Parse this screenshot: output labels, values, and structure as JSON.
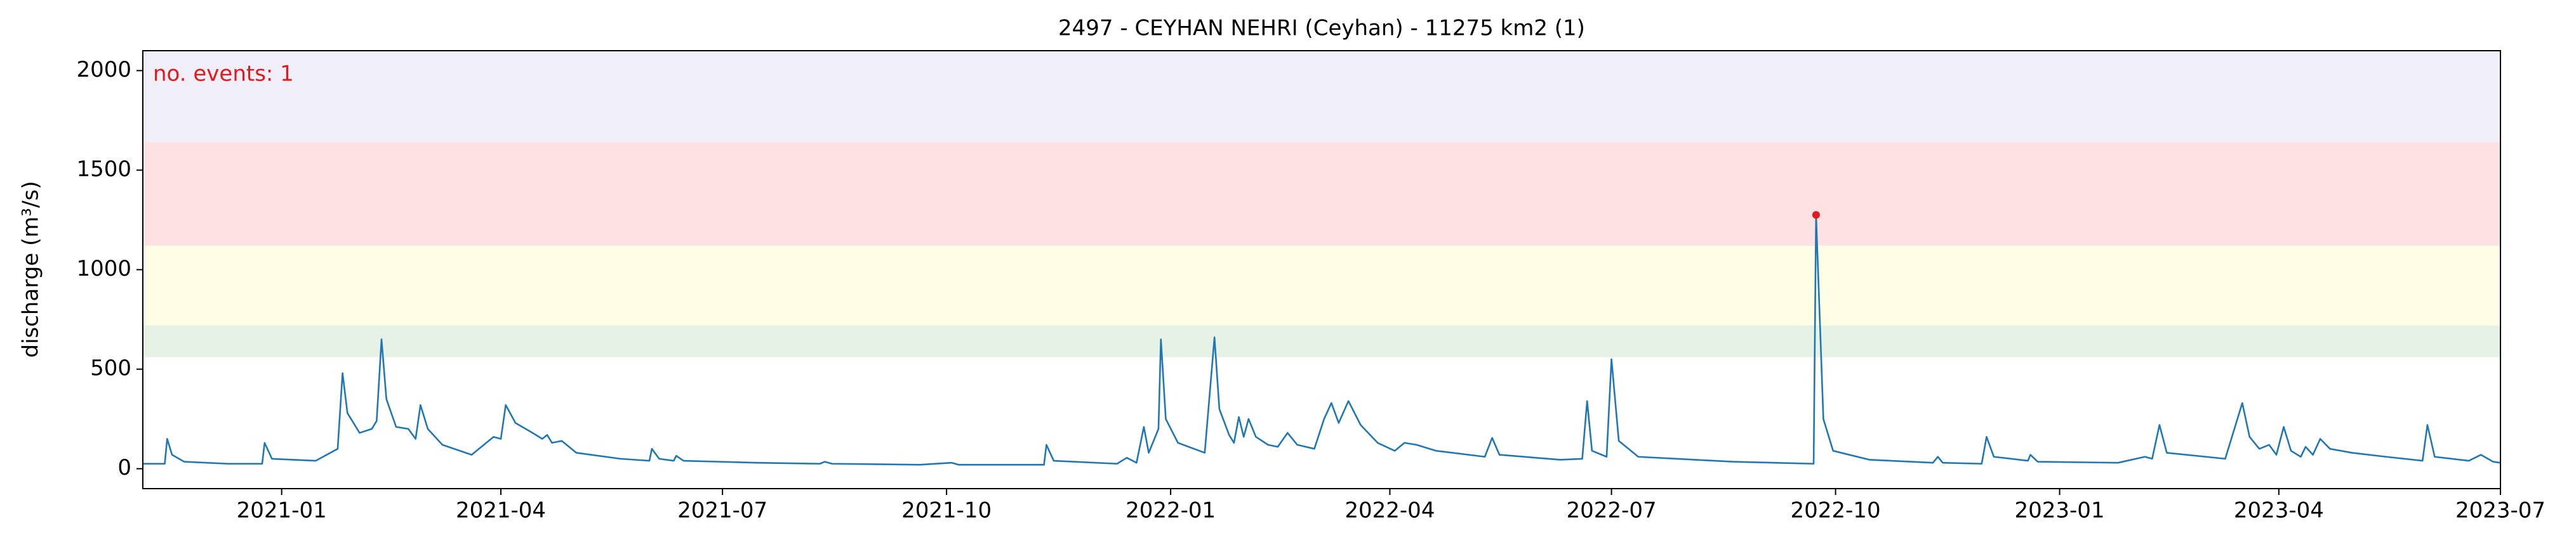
{
  "chart_data": {
    "type": "line",
    "title": "2497 - CEYHAN NEHRI (Ceyhan) - 11275 km2 (1)",
    "y_label": "discharge (m³/s)",
    "annotation": "no. events: 1",
    "annotation_color": "#e31a1c",
    "xlim": [
      "2020-11-05",
      "2023-07-01"
    ],
    "xticks": [
      "2021-01",
      "2021-04",
      "2021-07",
      "2021-10",
      "2022-01",
      "2022-04",
      "2022-07",
      "2022-10",
      "2023-01",
      "2023-04",
      "2023-07"
    ],
    "ylim": [
      -100,
      2100
    ],
    "yticks": [
      0,
      500,
      1000,
      1500,
      2000
    ],
    "bands": [
      {
        "from": 560,
        "to": 720,
        "color": "#e5f2e5"
      },
      {
        "from": 720,
        "to": 1120,
        "color": "#fefee4"
      },
      {
        "from": 1120,
        "to": 1640,
        "color": "#fee1e3"
      },
      {
        "from": 1640,
        "to": 2100,
        "color": "#f0eef9"
      }
    ],
    "series": [
      {
        "color": "#1f77b4",
        "x": [
          "2020-11-05",
          "2020-11-14",
          "2020-11-15",
          "2020-11-17",
          "2020-11-22",
          "2020-12-10",
          "2020-12-24",
          "2020-12-25",
          "2020-12-28",
          "2021-01-15",
          "2021-01-24",
          "2021-01-26",
          "2021-01-28",
          "2021-02-02",
          "2021-02-07",
          "2021-02-09",
          "2021-02-11",
          "2021-02-13",
          "2021-02-17",
          "2021-02-22",
          "2021-02-25",
          "2021-02-27",
          "2021-03-02",
          "2021-03-08",
          "2021-03-20",
          "2021-03-26",
          "2021-03-29",
          "2021-04-01",
          "2021-04-03",
          "2021-04-07",
          "2021-04-14",
          "2021-04-18",
          "2021-04-20",
          "2021-04-22",
          "2021-04-26",
          "2021-05-02",
          "2021-05-20",
          "2021-06-01",
          "2021-06-02",
          "2021-06-05",
          "2021-06-11",
          "2021-06-12",
          "2021-06-15",
          "2021-07-15",
          "2021-08-10",
          "2021-08-12",
          "2021-08-15",
          "2021-09-20",
          "2021-10-03",
          "2021-10-06",
          "2021-11-10",
          "2021-11-11",
          "2021-11-14",
          "2021-12-10",
          "2021-12-14",
          "2021-12-18",
          "2021-12-21",
          "2021-12-23",
          "2021-12-27",
          "2021-12-28",
          "2021-12-30",
          "2022-01-04",
          "2022-01-15",
          "2022-01-19",
          "2022-01-21",
          "2022-01-25",
          "2022-01-27",
          "2022-01-29",
          "2022-01-31",
          "2022-02-02",
          "2022-02-05",
          "2022-02-10",
          "2022-02-14",
          "2022-02-18",
          "2022-02-22",
          "2022-03-01",
          "2022-03-05",
          "2022-03-08",
          "2022-03-11",
          "2022-03-15",
          "2022-03-20",
          "2022-03-27",
          "2022-04-03",
          "2022-04-07",
          "2022-04-12",
          "2022-04-20",
          "2022-05-10",
          "2022-05-13",
          "2022-05-16",
          "2022-06-10",
          "2022-06-19",
          "2022-06-21",
          "2022-06-23",
          "2022-06-29",
          "2022-07-01",
          "2022-07-04",
          "2022-07-12",
          "2022-08-20",
          "2022-09-22",
          "2022-09-23",
          "2022-09-26",
          "2022-09-30",
          "2022-10-15",
          "2022-11-10",
          "2022-11-12",
          "2022-11-14",
          "2022-11-30",
          "2022-12-02",
          "2022-12-05",
          "2022-12-19",
          "2022-12-20",
          "2022-12-23",
          "2023-01-25",
          "2023-02-05",
          "2023-02-08",
          "2023-02-11",
          "2023-02-14",
          "2023-03-10",
          "2023-03-17",
          "2023-03-20",
          "2023-03-24",
          "2023-03-28",
          "2023-03-31",
          "2023-04-03",
          "2023-04-06",
          "2023-04-10",
          "2023-04-12",
          "2023-04-15",
          "2023-04-18",
          "2023-04-22",
          "2023-05-01",
          "2023-05-15",
          "2023-05-30",
          "2023-06-01",
          "2023-06-04",
          "2023-06-18",
          "2023-06-23",
          "2023-06-28",
          "2023-07-01"
        ],
        "values": [
          25,
          25,
          150,
          70,
          35,
          25,
          25,
          130,
          50,
          40,
          100,
          480,
          280,
          180,
          200,
          240,
          650,
          350,
          210,
          200,
          150,
          320,
          200,
          120,
          70,
          130,
          160,
          150,
          320,
          230,
          180,
          150,
          170,
          130,
          140,
          80,
          50,
          40,
          100,
          50,
          40,
          65,
          40,
          30,
          25,
          35,
          25,
          20,
          30,
          20,
          20,
          120,
          40,
          25,
          55,
          30,
          210,
          80,
          200,
          650,
          250,
          130,
          80,
          660,
          300,
          170,
          130,
          260,
          160,
          250,
          160,
          120,
          110,
          180,
          120,
          100,
          250,
          330,
          230,
          340,
          220,
          130,
          90,
          130,
          120,
          90,
          60,
          155,
          70,
          45,
          50,
          340,
          90,
          60,
          550,
          140,
          60,
          35,
          25,
          1275,
          250,
          90,
          45,
          30,
          60,
          30,
          25,
          160,
          60,
          40,
          70,
          35,
          30,
          60,
          50,
          220,
          80,
          50,
          330,
          160,
          100,
          120,
          70,
          210,
          90,
          60,
          110,
          70,
          150,
          100,
          80,
          60,
          40,
          220,
          60,
          40,
          70,
          35,
          30
        ]
      }
    ],
    "events": {
      "color": "#e31a1c",
      "x": [
        "2022-09-23"
      ],
      "values": [
        1275
      ]
    }
  }
}
